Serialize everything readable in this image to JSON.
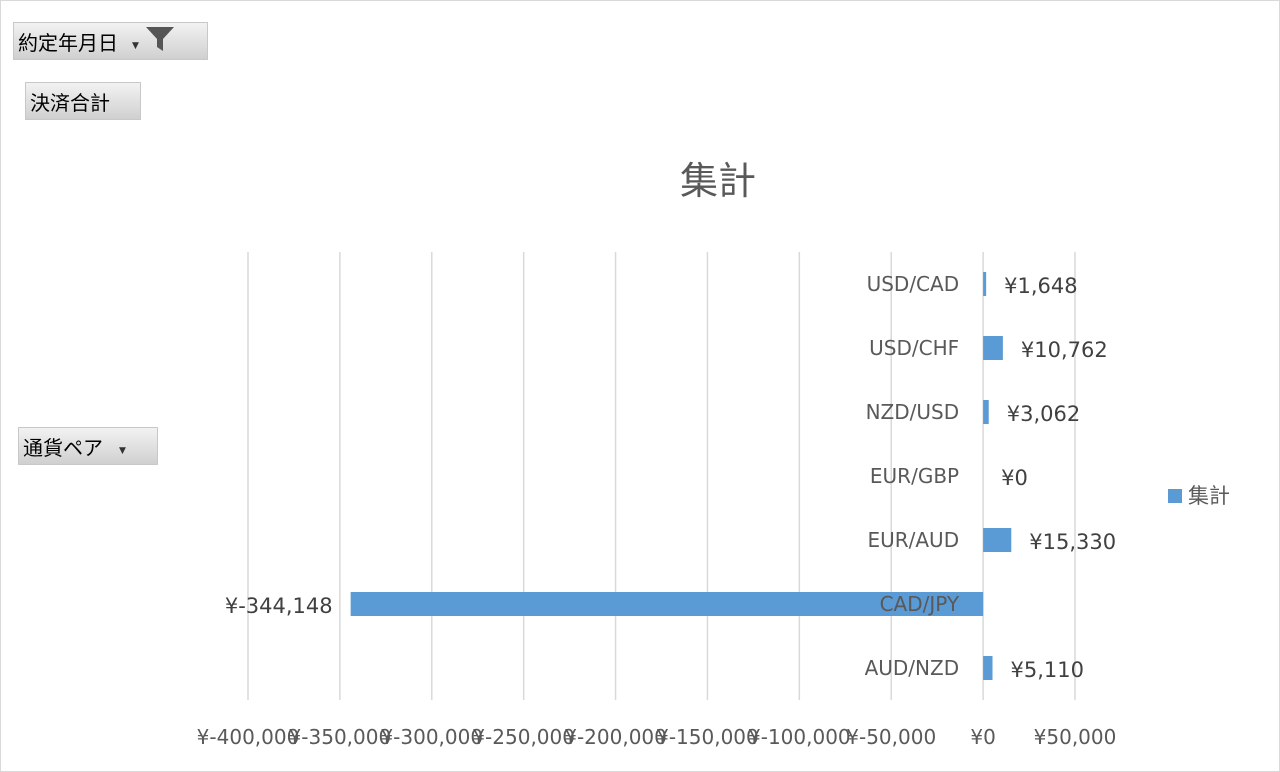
{
  "filters": {
    "date_field": {
      "label": "約定年月日",
      "icon": "filter-icon"
    },
    "value_field": {
      "label": "決済合計"
    },
    "axis_field": {
      "label": "通貨ペア"
    }
  },
  "colors": {
    "series": "#5b9bd5",
    "grid": "#d9d9d9",
    "text": "#595959"
  },
  "chart_data": {
    "type": "bar",
    "orientation": "horizontal",
    "title": "集計",
    "categories": [
      "AUD/NZD",
      "CAD/JPY",
      "EUR/AUD",
      "EUR/GBP",
      "NZD/USD",
      "USD/CHF",
      "USD/CAD"
    ],
    "series": [
      {
        "name": "集計",
        "values": [
          5110,
          -344148,
          15330,
          0,
          3062,
          10762,
          1648
        ]
      }
    ],
    "data_labels": [
      "¥5,110",
      "¥-344,148",
      "¥15,330",
      "¥0",
      "¥3,062",
      "¥10,762",
      "¥1,648"
    ],
    "xlim": [
      -400000,
      50000
    ],
    "x_ticks": [
      -400000,
      -350000,
      -300000,
      -250000,
      -200000,
      -150000,
      -100000,
      -50000,
      0,
      50000
    ],
    "x_tick_labels": [
      "¥-400,000",
      "¥-350,000",
      "¥-300,000",
      "¥-250,000",
      "¥-200,000",
      "¥-150,000",
      "¥-100,000",
      "¥-50,000",
      "¥0",
      "¥50,000"
    ],
    "grid": true,
    "legend": {
      "position": "right",
      "entries": [
        "集計"
      ]
    }
  }
}
